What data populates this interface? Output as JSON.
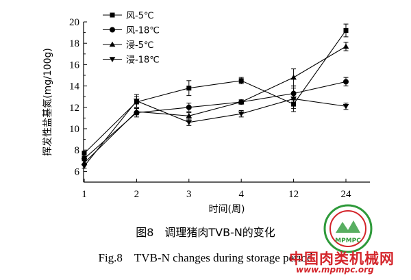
{
  "chart_data": {
    "type": "line",
    "categories": [
      "1",
      "2",
      "3",
      "4",
      "12",
      "24"
    ],
    "xlabel": "时间(周)",
    "ylabel": "挥发性盐基氮(mg/100g)",
    "ylim": [
      5,
      20
    ],
    "yticks": [
      "6",
      "8",
      "10",
      "12",
      "14",
      "16",
      "18",
      "20"
    ],
    "legend_position": "top-left",
    "grid": false,
    "series": [
      {
        "name": "风-5℃",
        "marker": "square",
        "values": [
          7.7,
          12.5,
          13.8,
          14.5,
          12.3,
          19.2
        ],
        "errors": [
          0.2,
          0.5,
          0.7,
          0.3,
          0.4,
          0.6
        ]
      },
      {
        "name": "风-18℃",
        "marker": "circle",
        "values": [
          7.2,
          11.5,
          12.0,
          12.5,
          13.3,
          14.4
        ],
        "errors": [
          0.2,
          0.4,
          0.4,
          0.2,
          0.5,
          0.4
        ]
      },
      {
        "name": "浸-5℃",
        "marker": "triangle-up",
        "values": [
          6.8,
          11.6,
          11.2,
          12.5,
          14.8,
          17.7
        ],
        "errors": [
          0.2,
          0.3,
          0.3,
          0.2,
          0.8,
          0.4
        ]
      },
      {
        "name": "浸-18℃",
        "marker": "triangle-down",
        "values": [
          6.5,
          12.6,
          10.6,
          11.4,
          12.8,
          12.1
        ],
        "errors": [
          0.2,
          0.6,
          0.3,
          0.3,
          1.2,
          0.3
        ]
      }
    ]
  },
  "captions": {
    "cn": "图8　调理猪肉TVB-N的变化",
    "en": "Fig.8　TVB-N changes during storage period"
  },
  "watermark": {
    "site_name": "中国肉类机械网",
    "url": "www.mpmpc.org",
    "logo_text": "MPMPC",
    "color": "#d4252b"
  }
}
